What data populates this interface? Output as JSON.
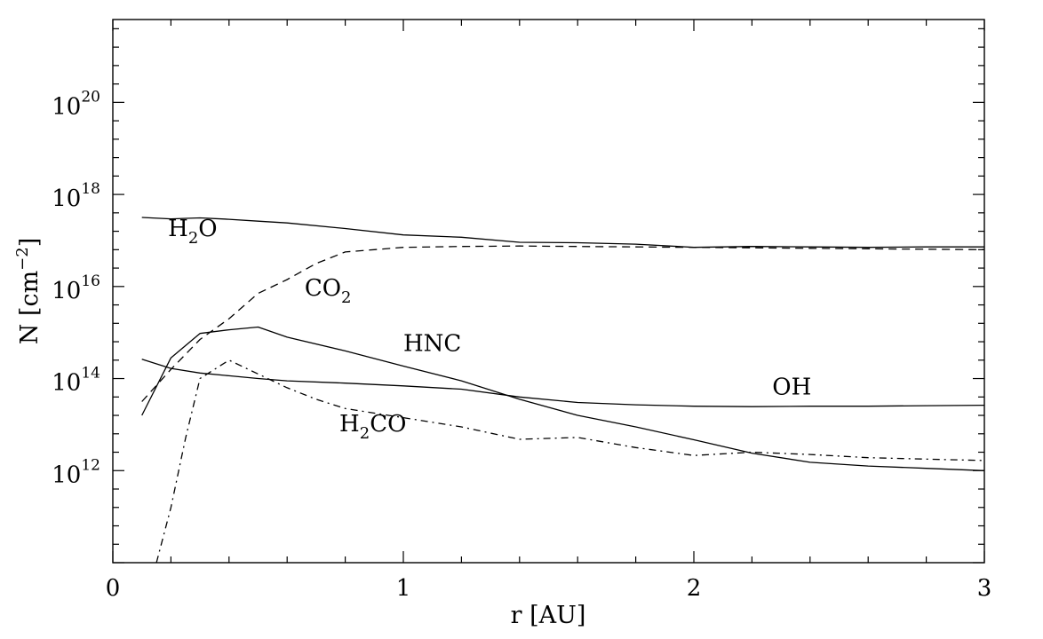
{
  "chart_data": {
    "type": "line",
    "title": "",
    "xlabel": "r [AU]",
    "ylabel": {
      "base": "N [cm",
      "exp": "−2",
      "close": "]"
    },
    "x_scale": "linear",
    "y_scale": "log",
    "xlim": [
      0,
      3
    ],
    "ylim": [
      10,
      21.8
    ],
    "x_ticks": [
      {
        "value": 0,
        "label": "0"
      },
      {
        "value": 1,
        "label": "1"
      },
      {
        "value": 2,
        "label": "2"
      },
      {
        "value": 3,
        "label": "3"
      }
    ],
    "y_ticks": [
      {
        "value": 12,
        "base": "10",
        "exp": "12"
      },
      {
        "value": 14,
        "base": "10",
        "exp": "14"
      },
      {
        "value": 16,
        "base": "10",
        "exp": "16"
      },
      {
        "value": 18,
        "base": "10",
        "exp": "18"
      },
      {
        "value": 20,
        "base": "10",
        "exp": "20"
      }
    ],
    "y_values_are": "log10(N / cm^-2)",
    "grid": false,
    "legend": "none",
    "series": [
      {
        "name": "H2O",
        "label": {
          "parts": [
            {
              "t": "H"
            },
            {
              "t": "2",
              "sub": true
            },
            {
              "t": "O"
            }
          ],
          "at": [
            0.19,
            17.1
          ]
        },
        "style": "solid",
        "x": [
          0.1,
          0.2,
          0.3,
          0.4,
          0.5,
          0.6,
          0.8,
          1.0,
          1.2,
          1.4,
          1.6,
          1.8,
          2.0,
          2.2,
          2.4,
          2.6,
          2.8,
          3.0
        ],
        "y": [
          17.5,
          17.47,
          17.49,
          17.46,
          17.42,
          17.38,
          17.26,
          17.12,
          17.07,
          16.96,
          16.95,
          16.92,
          16.85,
          16.87,
          16.86,
          16.85,
          16.86,
          16.86
        ]
      },
      {
        "name": "CO2",
        "label": {
          "parts": [
            {
              "t": "CO"
            },
            {
              "t": "2",
              "sub": true
            }
          ],
          "at": [
            0.66,
            15.8
          ]
        },
        "style": "dashed",
        "x": [
          0.1,
          0.2,
          0.3,
          0.4,
          0.5,
          0.6,
          0.7,
          0.8,
          0.9,
          1.0,
          1.2,
          1.4,
          1.6,
          1.8,
          2.0,
          2.2,
          2.4,
          2.6,
          2.8,
          3.0
        ],
        "y": [
          13.5,
          14.2,
          14.85,
          15.3,
          15.85,
          16.15,
          16.5,
          16.75,
          16.8,
          16.85,
          16.87,
          16.88,
          16.87,
          16.86,
          16.85,
          16.84,
          16.83,
          16.82,
          16.81,
          16.8
        ]
      },
      {
        "name": "HNC",
        "label": {
          "parts": [
            {
              "t": "HNC"
            }
          ],
          "at": [
            1.0,
            14.6
          ]
        },
        "style": "solid",
        "x": [
          0.1,
          0.2,
          0.3,
          0.4,
          0.5,
          0.6,
          0.8,
          1.0,
          1.2,
          1.4,
          1.6,
          1.8,
          2.0,
          2.2,
          2.4,
          2.6,
          2.8,
          3.0
        ],
        "y": [
          13.2,
          14.45,
          14.98,
          15.06,
          15.12,
          14.9,
          14.6,
          14.27,
          13.95,
          13.55,
          13.2,
          12.95,
          12.67,
          12.38,
          12.18,
          12.1,
          12.05,
          12.0
        ]
      },
      {
        "name": "OH",
        "label": {
          "parts": [
            {
              "t": "OH"
            }
          ],
          "at": [
            2.27,
            13.65
          ]
        },
        "style": "solid",
        "x": [
          0.1,
          0.2,
          0.3,
          0.4,
          0.5,
          0.6,
          0.8,
          1.0,
          1.2,
          1.4,
          1.6,
          1.8,
          2.0,
          2.2,
          2.4,
          2.6,
          2.8,
          3.0
        ],
        "y": [
          14.42,
          14.22,
          14.12,
          14.06,
          14.0,
          13.95,
          13.9,
          13.84,
          13.77,
          13.6,
          13.48,
          13.43,
          13.4,
          13.39,
          13.4,
          13.4,
          13.41,
          13.42
        ]
      },
      {
        "name": "H2CO",
        "label": {
          "parts": [
            {
              "t": "H"
            },
            {
              "t": "2",
              "sub": true
            },
            {
              "t": "CO"
            }
          ],
          "at": [
            0.78,
            12.85
          ]
        },
        "style": "dashdot",
        "x": [
          0.15,
          0.2,
          0.25,
          0.3,
          0.4,
          0.5,
          0.6,
          0.7,
          0.8,
          1.0,
          1.2,
          1.4,
          1.6,
          1.8,
          2.0,
          2.2,
          2.4,
          2.6,
          2.8,
          3.0
        ],
        "y": [
          10.0,
          11.2,
          12.7,
          14.0,
          14.4,
          14.1,
          13.8,
          13.55,
          13.35,
          13.15,
          12.95,
          12.68,
          12.72,
          12.5,
          12.33,
          12.4,
          12.35,
          12.28,
          12.25,
          12.22
        ]
      }
    ]
  }
}
